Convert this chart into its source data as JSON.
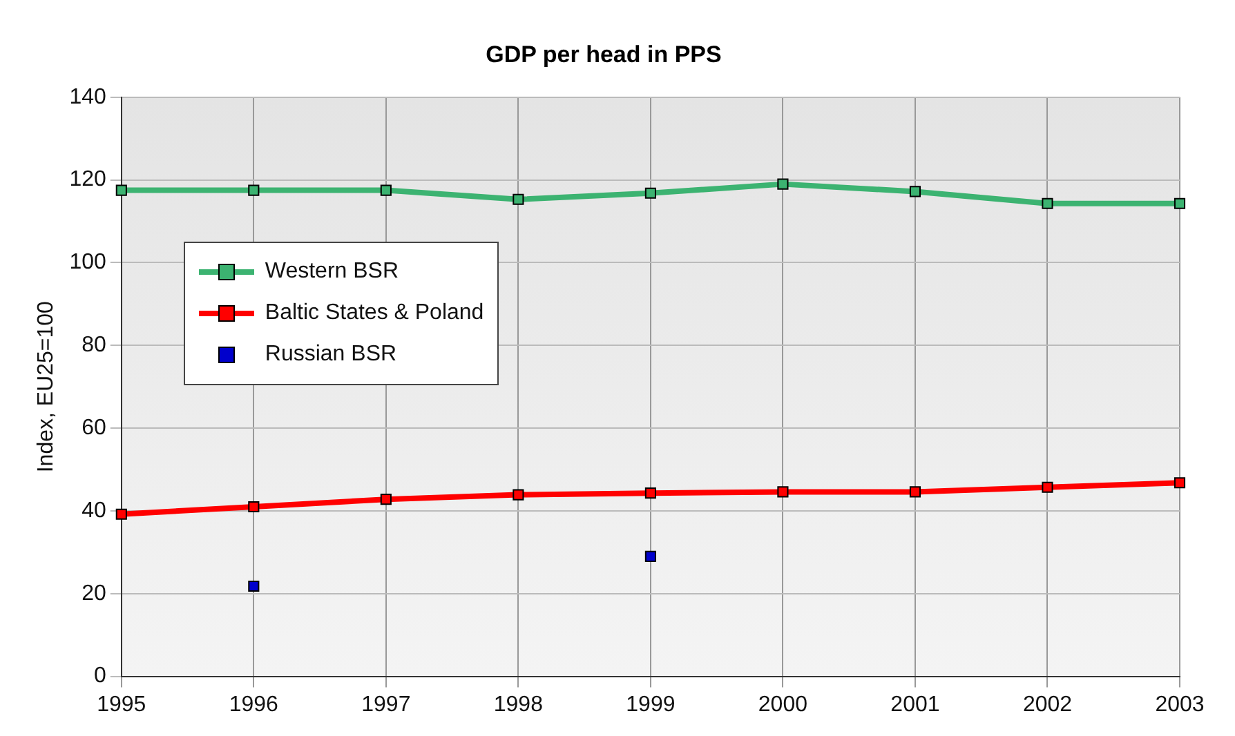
{
  "chart_data": {
    "type": "line",
    "title": "GDP per head in PPS",
    "ylabel": "Index, EU25=100",
    "categories": [
      "1995",
      "1996",
      "1997",
      "1998",
      "1999",
      "2000",
      "2001",
      "2002",
      "2003"
    ],
    "series": [
      {
        "name": "Western BSR",
        "color": "#3cb371",
        "values": [
          117.5,
          117.5,
          117.5,
          115.3,
          116.8,
          119,
          117.2,
          114.3,
          114.3
        ]
      },
      {
        "name": "Baltic States & Poland",
        "color": "#ff0000",
        "values": [
          39.2,
          41,
          42.8,
          43.9,
          44.3,
          44.6,
          44.6,
          45.7,
          46.8
        ]
      },
      {
        "name": "Russian BSR",
        "type": "scatter",
        "color": "#0000cc",
        "values": [
          null,
          21.8,
          null,
          null,
          29,
          null,
          null,
          null,
          null
        ]
      }
    ],
    "ylim": [
      0,
      140
    ],
    "yticks": [
      0,
      20,
      40,
      60,
      80,
      100,
      120,
      140
    ],
    "grid": true,
    "legend": "left",
    "marker": "square",
    "line_style": "solid"
  }
}
